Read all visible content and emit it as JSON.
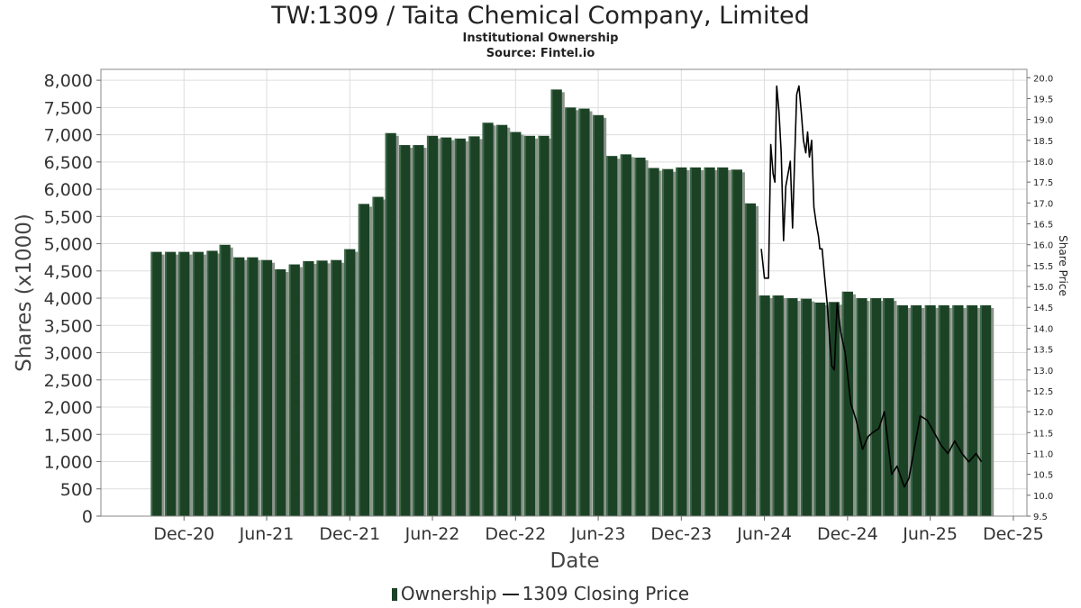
{
  "header": {
    "title": "TW:1309 / Taita Chemical Company, Limited",
    "subtitle": "Institutional Ownership",
    "source": "Source: Fintel.io"
  },
  "legend": {
    "ownership": "Ownership",
    "price": "1309 Closing Price"
  },
  "colors": {
    "bar": "#1b4225",
    "bar_highlight": "#3e6a48",
    "bar_shadow": "#8c948c",
    "price_line": "#000000",
    "grid": "#dddddd"
  },
  "chart_data": {
    "type": "bar",
    "xlabel": "Date",
    "ylabel": "Shares (x1000)",
    "y2label": "Share Price",
    "ylim": [
      0,
      8200
    ],
    "y2lim": [
      9.5,
      20.2
    ],
    "yticks": [
      0,
      500,
      1000,
      1500,
      2000,
      2500,
      3000,
      3500,
      4000,
      4500,
      5000,
      5500,
      6000,
      6500,
      7000,
      7500,
      8000
    ],
    "ytick_labels": [
      "0",
      "500",
      "1,000",
      "1,500",
      "2,000",
      "2,500",
      "3,000",
      "3,500",
      "4,000",
      "4,500",
      "5,000",
      "5,500",
      "6,000",
      "6,500",
      "7,000",
      "7,500",
      "8,000"
    ],
    "y2ticks": [
      9.5,
      10.0,
      10.5,
      11.0,
      11.5,
      12.0,
      12.5,
      13.0,
      13.5,
      14.0,
      14.5,
      15.0,
      15.5,
      16.0,
      16.5,
      17.0,
      17.5,
      18.0,
      18.5,
      19.0,
      19.5,
      20.0
    ],
    "y2tick_labels": [
      "9.5",
      "10.0",
      "10.5",
      "11.0",
      "11.5",
      "12.0",
      "12.5",
      "13.0",
      "13.5",
      "14.0",
      "14.5",
      "15.0",
      "15.5",
      "16.0",
      "16.5",
      "17.0",
      "17.5",
      "18.0",
      "18.5",
      "19.0",
      "19.5",
      "20.0"
    ],
    "xticks": [
      "2020-12-01",
      "2021-06-01",
      "2021-12-01",
      "2022-06-01",
      "2022-12-01",
      "2023-06-01",
      "2023-12-01",
      "2024-06-01",
      "2024-12-01",
      "2025-06-01",
      "2025-12-01"
    ],
    "xtick_labels": [
      "Dec-20",
      "Jun-21",
      "Dec-21",
      "Jun-22",
      "Dec-22",
      "Jun-23",
      "Dec-23",
      "Jun-24",
      "Dec-24",
      "Jun-25",
      "Dec-25"
    ],
    "xlim": [
      "2020-06-01",
      "2025-12-31"
    ],
    "grid": true,
    "series": [
      {
        "name": "Ownership",
        "type": "bar",
        "x": [
          "2020-10-01",
          "2020-11-01",
          "2020-12-01",
          "2021-01-01",
          "2021-02-01",
          "2021-03-01",
          "2021-04-01",
          "2021-05-01",
          "2021-06-01",
          "2021-07-01",
          "2021-08-01",
          "2021-09-01",
          "2021-10-01",
          "2021-11-01",
          "2021-12-01",
          "2022-01-01",
          "2022-02-01",
          "2022-03-01",
          "2022-04-01",
          "2022-05-01",
          "2022-06-01",
          "2022-07-01",
          "2022-08-01",
          "2022-09-01",
          "2022-10-01",
          "2022-11-01",
          "2022-12-01",
          "2023-01-01",
          "2023-02-01",
          "2023-03-01",
          "2023-04-01",
          "2023-05-01",
          "2023-06-01",
          "2023-07-01",
          "2023-08-01",
          "2023-09-01",
          "2023-10-01",
          "2023-11-01",
          "2023-12-01",
          "2024-01-01",
          "2024-02-01",
          "2024-03-01",
          "2024-04-01",
          "2024-05-01",
          "2024-06-01",
          "2024-07-01",
          "2024-08-01",
          "2024-09-01",
          "2024-10-01",
          "2024-11-01",
          "2024-12-01",
          "2025-01-01",
          "2025-02-01",
          "2025-03-01",
          "2025-04-01",
          "2025-05-01",
          "2025-06-01",
          "2025-07-01",
          "2025-08-01",
          "2025-09-01",
          "2025-10-01"
        ],
        "values": [
          4850,
          4850,
          4850,
          4850,
          4870,
          4980,
          4750,
          4750,
          4700,
          4530,
          4620,
          4680,
          4690,
          4700,
          4900,
          5730,
          5860,
          7030,
          6810,
          6810,
          6980,
          6950,
          6930,
          6970,
          7220,
          7180,
          7050,
          6980,
          6980,
          7830,
          7500,
          7480,
          7360,
          6610,
          6640,
          6580,
          6390,
          6370,
          6400,
          6400,
          6400,
          6400,
          6360,
          5740,
          4050,
          4050,
          4000,
          3990,
          3920,
          3930,
          4120,
          4000,
          4000,
          4000,
          3870,
          3870,
          3870,
          3870,
          3870,
          3870,
          3870
        ]
      },
      {
        "name": "1309 Closing Price",
        "type": "line",
        "x": [
          "2024-05-25",
          "2024-06-01",
          "2024-06-10",
          "2024-06-15",
          "2024-06-20",
          "2024-06-24",
          "2024-06-28",
          "2024-07-03",
          "2024-07-08",
          "2024-07-13",
          "2024-07-18",
          "2024-07-23",
          "2024-07-28",
          "2024-08-02",
          "2024-08-06",
          "2024-08-11",
          "2024-08-16",
          "2024-08-21",
          "2024-08-26",
          "2024-08-31",
          "2024-09-04",
          "2024-09-08",
          "2024-09-13",
          "2024-09-18",
          "2024-09-23",
          "2024-09-28",
          "2024-10-01",
          "2024-10-06",
          "2024-10-11",
          "2024-10-17",
          "2024-10-22",
          "2024-10-27",
          "2024-11-02",
          "2024-11-08",
          "2024-11-16",
          "2024-11-26",
          "2024-12-08",
          "2024-12-20",
          "2025-01-03",
          "2025-01-15",
          "2025-01-25",
          "2025-02-08",
          "2025-02-20",
          "2025-03-08",
          "2025-03-20",
          "2025-04-05",
          "2025-04-15",
          "2025-04-25",
          "2025-05-10",
          "2025-05-25",
          "2025-06-10",
          "2025-06-25",
          "2025-07-10",
          "2025-07-25",
          "2025-08-10",
          "2025-08-25",
          "2025-09-10",
          "2025-09-22"
        ],
        "values": [
          15.9,
          15.2,
          15.2,
          18.4,
          17.7,
          17.5,
          19.8,
          19.2,
          18.2,
          16.1,
          17.4,
          17.7,
          18.0,
          16.4,
          17.9,
          19.6,
          19.8,
          19.2,
          18.5,
          18.2,
          18.7,
          18.1,
          18.5,
          16.9,
          16.5,
          16.2,
          15.9,
          15.9,
          15.3,
          14.6,
          13.8,
          13.1,
          13.0,
          14.6,
          13.9,
          13.4,
          12.2,
          11.8,
          11.1,
          11.4,
          11.5,
          11.6,
          12.0,
          10.5,
          10.7,
          10.2,
          10.4,
          11.0,
          11.9,
          11.8,
          11.5,
          11.2,
          11.0,
          11.3,
          11.0,
          10.8,
          11.0,
          10.8
        ]
      }
    ]
  }
}
